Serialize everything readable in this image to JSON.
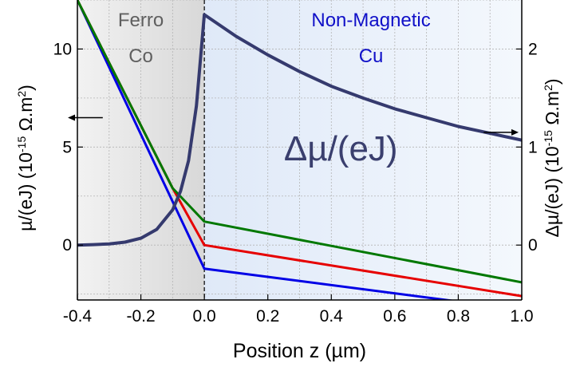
{
  "chart_data": {
    "type": "line",
    "xlabel": "Position z (µm)",
    "ylabel_left": "µ/(eJ) (10",
    "ylabel_left_exp": "-15",
    "ylabel_left_unit": " Ω.m",
    "ylabel_left_unit_exp": "2",
    "ylabel_left_close": ")",
    "ylabel_right": "Δµ/(eJ) (10",
    "ylabel_right_exp": "-15",
    "ylabel_right_unit": " Ω.m",
    "ylabel_right_unit_exp": "2",
    "ylabel_right_close": ")",
    "xlim": [
      -0.4,
      1.0
    ],
    "ylim_left": [
      -2.8,
      12.5
    ],
    "ylim_right": [
      -0.56,
      2.5
    ],
    "x_ticks": [
      {
        "value": -0.4,
        "label": "-0.4"
      },
      {
        "value": -0.2,
        "label": "-0.2"
      },
      {
        "value": 0.0,
        "label": "0.0"
      },
      {
        "value": 0.2,
        "label": "0.2"
      },
      {
        "value": 0.4,
        "label": "0.4"
      },
      {
        "value": 0.6,
        "label": "0.6"
      },
      {
        "value": 0.8,
        "label": "0.8"
      },
      {
        "value": 1.0,
        "label": "1.0"
      }
    ],
    "y_ticks_left": [
      {
        "value": 0,
        "label": "0"
      },
      {
        "value": 5,
        "label": "5"
      },
      {
        "value": 10,
        "label": "10"
      }
    ],
    "y_ticks_right": [
      {
        "value": 0,
        "label": "0"
      },
      {
        "value": 1,
        "label": "1"
      },
      {
        "value": 2,
        "label": "2"
      }
    ],
    "regions": [
      {
        "label_line1": "Ferro",
        "label_line2": "Co",
        "x_range": [
          -0.4,
          0.0
        ],
        "color": "#5f5f5f",
        "fill": "#e6e6e6"
      },
      {
        "label_line1": "Non-Magnetic",
        "label_line2": "Cu",
        "x_range": [
          0.0,
          1.0
        ],
        "color": "#1010c8",
        "fill": "#e4eefa"
      }
    ],
    "annotation": {
      "text": "Δµ/(eJ)",
      "x": 0.43,
      "y": 4.9
    },
    "arrows": [
      {
        "direction": "left",
        "axis": "left",
        "x_from": -0.32,
        "x_to": -0.43,
        "y": 6.5
      },
      {
        "direction": "right",
        "axis": "right",
        "x_from": 0.88,
        "x_to": 0.99,
        "y": 1.15
      }
    ],
    "series": [
      {
        "axis": "left",
        "color": "#0000e6",
        "x": [
          -0.4,
          0.0,
          1.0
        ],
        "values": [
          12.5,
          -1.2,
          -3.3
        ]
      },
      {
        "axis": "left",
        "color": "#e60000",
        "x": [
          -0.4,
          -0.1,
          0.0,
          1.0
        ],
        "values": [
          12.5,
          2.9,
          0.0,
          -2.6
        ]
      },
      {
        "axis": "left",
        "color": "#007800",
        "x": [
          -0.4,
          -0.1,
          0.0,
          1.0
        ],
        "values": [
          12.5,
          2.9,
          1.2,
          -1.9
        ]
      },
      {
        "axis": "right",
        "color": "#353a6e",
        "x": [
          -0.4,
          -0.35,
          -0.3,
          -0.25,
          -0.2,
          -0.15,
          -0.1,
          -0.075,
          -0.05,
          -0.025,
          0.0,
          0.1,
          0.2,
          0.3,
          0.4,
          0.5,
          0.6,
          0.7,
          0.8,
          0.9,
          1.0
        ],
        "values": [
          0.0,
          0.005,
          0.012,
          0.03,
          0.07,
          0.16,
          0.36,
          0.55,
          0.86,
          1.42,
          2.35,
          2.13,
          1.94,
          1.77,
          1.62,
          1.5,
          1.39,
          1.3,
          1.21,
          1.14,
          1.07
        ]
      }
    ]
  }
}
